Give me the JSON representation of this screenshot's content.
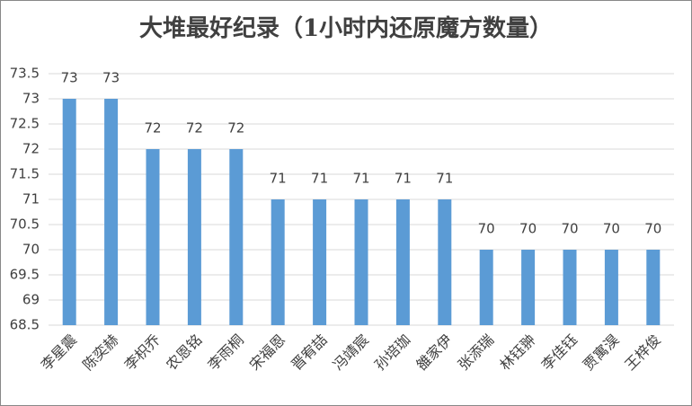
{
  "chart_data": {
    "type": "bar",
    "title": "大堆最好纪录（1小时内还原魔方数量）",
    "categories": [
      "李星震",
      "陈奕赫",
      "李枳乔",
      "农恩铭",
      "李雨桐",
      "宋福恩",
      "晋宥喆",
      "冯靖宸",
      "孙培珈",
      "雒家伊",
      "张添瑞",
      "林钰翀",
      "李佳钰",
      "贾寓淏",
      "王梓俊"
    ],
    "values": [
      73,
      73,
      72,
      72,
      72,
      71,
      71,
      71,
      71,
      71,
      70,
      70,
      70,
      70,
      70
    ],
    "color": "#5b9bd5",
    "ylim": [
      68.5,
      73.5
    ],
    "yticks": [
      68.5,
      69,
      69.5,
      70,
      70.5,
      71,
      71.5,
      72,
      72.5,
      73,
      73.5
    ],
    "grid": true
  }
}
